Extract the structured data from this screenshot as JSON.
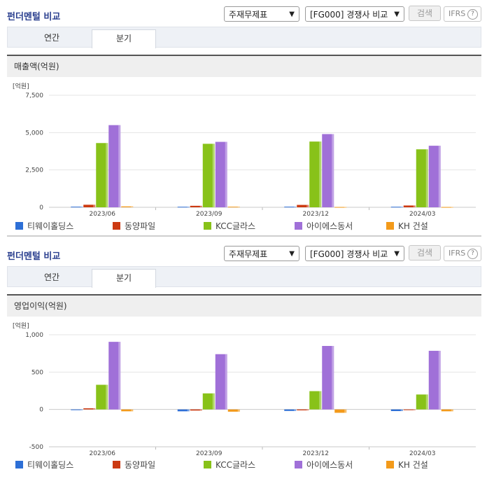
{
  "panels": [
    {
      "title": "펀더멘털 비교",
      "select_statement": "주재무제표",
      "select_compare": "[FG000] 경쟁사 비교",
      "search_label": "검색",
      "ifrs_label": "IFRS",
      "help_glyph": "?",
      "tabs": [
        {
          "label": "연간",
          "active": false
        },
        {
          "label": "분기",
          "active": true
        }
      ],
      "metric_label": "매출액(억원)"
    },
    {
      "title": "펀더멘털 비교",
      "select_statement": "주재무제표",
      "select_compare": "[FG000] 경쟁사 비교",
      "search_label": "검색",
      "ifrs_label": "IFRS",
      "help_glyph": "?",
      "tabs": [
        {
          "label": "연간",
          "active": false
        },
        {
          "label": "분기",
          "active": true
        }
      ],
      "metric_label": "영업이익(억원)"
    }
  ],
  "colors": {
    "title": "#2a3f8f",
    "series": [
      "#2d6fd6",
      "#cc3a12",
      "#88c219",
      "#a070d8",
      "#f39a1a"
    ]
  },
  "icons": {
    "dropdown": "chevron-down-icon",
    "help": "question-circle-icon"
  },
  "chart_data": [
    {
      "type": "bar",
      "unit_label": "[억원]",
      "categories": [
        "2023/06",
        "2023/09",
        "2023/12",
        "2024/03"
      ],
      "ylim": [
        0,
        7500
      ],
      "yticks": [
        0,
        2500,
        5000,
        7500
      ],
      "ytick_labels": [
        "0",
        "2,500",
        "5,000",
        "7,500"
      ],
      "grid": true,
      "legend_position": "bottom",
      "series": [
        {
          "name": "티웨이홀딩스",
          "values": [
            40,
            35,
            40,
            35
          ]
        },
        {
          "name": "동양파일",
          "values": [
            170,
            100,
            160,
            120
          ]
        },
        {
          "name": "KCC글라스",
          "values": [
            4300,
            4250,
            4400,
            3880
          ]
        },
        {
          "name": "아이에스동서",
          "values": [
            5500,
            4380,
            4900,
            4120
          ]
        },
        {
          "name": "KH 건설",
          "values": [
            60,
            40,
            20,
            20
          ]
        }
      ]
    },
    {
      "type": "bar",
      "unit_label": "[억원]",
      "categories": [
        "2023/06",
        "2023/09",
        "2023/12",
        "2024/03"
      ],
      "ylim": [
        -500,
        1000
      ],
      "yticks": [
        -500,
        0,
        500,
        1000
      ],
      "ytick_labels": [
        "-500",
        "0",
        "500",
        "1,000"
      ],
      "grid": true,
      "legend_position": "bottom",
      "series": [
        {
          "name": "티웨이홀딩스",
          "values": [
            -8,
            -25,
            -20,
            -22
          ]
        },
        {
          "name": "동양파일",
          "values": [
            15,
            -15,
            -12,
            -5
          ]
        },
        {
          "name": "KCC글라스",
          "values": [
            330,
            215,
            245,
            200
          ]
        },
        {
          "name": "아이에스동서",
          "values": [
            905,
            740,
            850,
            785
          ]
        },
        {
          "name": "KH 건설",
          "values": [
            -25,
            -30,
            -45,
            -25
          ]
        }
      ]
    }
  ]
}
